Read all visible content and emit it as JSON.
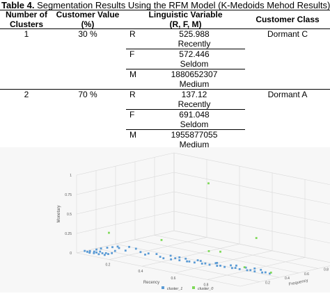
{
  "caption": {
    "label": "Table 4.",
    "text": " Segmentation Results Using the RFM Model (K-Medoids Mehod Results)"
  },
  "table": {
    "headers": {
      "clusters": [
        "Number of",
        "Clusters"
      ],
      "value": [
        "Customer Value",
        "(%)"
      ],
      "variable": [
        "Linguistic Variable",
        "(R, F, M)"
      ],
      "class": "Customer Class"
    },
    "rows": [
      {
        "cluster": "1",
        "value": "30 %",
        "class": "Dormant C",
        "vars": [
          {
            "key": "R",
            "number": "525.988",
            "term": "Recently"
          },
          {
            "key": "F",
            "number": "572.446",
            "term": "Seldom"
          },
          {
            "key": "M",
            "number": "1880652307",
            "term": "Medium"
          }
        ]
      },
      {
        "cluster": "2",
        "value": "70 %",
        "class": "Dormant A",
        "vars": [
          {
            "key": "R",
            "number": "137.12",
            "term": "Recently"
          },
          {
            "key": "F",
            "number": "691.048",
            "term": "Seldom"
          },
          {
            "key": "M",
            "number": "1955877055",
            "term": "Medium"
          }
        ]
      }
    ]
  },
  "chart_data": {
    "type": "scatter",
    "xlabel": "Recency",
    "ylabel": "Frequency",
    "zlabel": "Monetary",
    "x_ticks": [
      "0.2",
      "0.4",
      "0.6",
      "0.8"
    ],
    "y_ticks": [
      "0.2",
      "0.4",
      "0.6",
      "0.8"
    ],
    "z_ticks": [
      "0",
      "0.25",
      "0.5",
      "0.75",
      "1"
    ],
    "legend_placement": "bottom",
    "series": [
      {
        "name": "cluster_1",
        "color": "#5b9bd5",
        "points": [
          [
            0.02,
            0.05,
            0.02
          ],
          [
            0.03,
            0.06,
            0.01
          ],
          [
            0.04,
            0.07,
            0.02
          ],
          [
            0.05,
            0.05,
            0.01
          ],
          [
            0.06,
            0.08,
            0.02
          ],
          [
            0.07,
            0.06,
            0.01
          ],
          [
            0.08,
            0.07,
            0.02
          ],
          [
            0.09,
            0.09,
            0.03
          ],
          [
            0.1,
            0.06,
            0.01
          ],
          [
            0.11,
            0.08,
            0.02
          ],
          [
            0.12,
            0.1,
            0.02
          ],
          [
            0.13,
            0.07,
            0.01
          ],
          [
            0.14,
            0.09,
            0.02
          ],
          [
            0.15,
            0.11,
            0.03
          ],
          [
            0.05,
            0.12,
            0.03
          ],
          [
            0.06,
            0.15,
            0.04
          ],
          [
            0.08,
            0.18,
            0.05
          ],
          [
            0.1,
            0.2,
            0.06
          ],
          [
            0.12,
            0.22,
            0.07
          ],
          [
            0.14,
            0.16,
            0.04
          ],
          [
            0.18,
            0.2,
            0.05
          ],
          [
            0.22,
            0.24,
            0.08
          ],
          [
            0.26,
            0.22,
            0.06
          ],
          [
            0.3,
            0.2,
            0.05
          ],
          [
            0.34,
            0.25,
            0.06
          ],
          [
            0.38,
            0.22,
            0.05
          ],
          [
            0.42,
            0.26,
            0.07
          ],
          [
            0.46,
            0.24,
            0.06
          ],
          [
            0.5,
            0.28,
            0.06
          ],
          [
            0.54,
            0.25,
            0.05
          ],
          [
            0.58,
            0.3,
            0.06
          ],
          [
            0.62,
            0.28,
            0.05
          ],
          [
            0.66,
            0.32,
            0.06
          ],
          [
            0.7,
            0.3,
            0.05
          ],
          [
            0.74,
            0.34,
            0.06
          ],
          [
            0.78,
            0.32,
            0.05
          ],
          [
            0.82,
            0.36,
            0.06
          ],
          [
            0.86,
            0.34,
            0.05
          ],
          [
            0.9,
            0.38,
            0.06
          ],
          [
            0.94,
            0.36,
            0.05
          ],
          [
            0.4,
            0.22,
            0.04
          ],
          [
            0.44,
            0.23,
            0.04
          ],
          [
            0.48,
            0.25,
            0.04
          ],
          [
            0.52,
            0.26,
            0.04
          ],
          [
            0.56,
            0.27,
            0.04
          ],
          [
            0.6,
            0.28,
            0.04
          ],
          [
            0.64,
            0.29,
            0.04
          ],
          [
            0.68,
            0.3,
            0.04
          ],
          [
            0.72,
            0.31,
            0.04
          ],
          [
            0.76,
            0.32,
            0.04
          ],
          [
            0.8,
            0.33,
            0.04
          ],
          [
            0.84,
            0.34,
            0.04
          ],
          [
            0.88,
            0.35,
            0.04
          ],
          [
            0.92,
            0.36,
            0.04
          ],
          [
            0.96,
            0.37,
            0.04
          ],
          [
            0.45,
            0.3,
            0.05
          ],
          [
            0.55,
            0.32,
            0.05
          ],
          [
            0.65,
            0.35,
            0.05
          ],
          [
            0.75,
            0.38,
            0.05
          ],
          [
            0.85,
            0.4,
            0.05
          ],
          [
            0.2,
            0.1,
            0.12
          ],
          [
            0.25,
            0.12,
            0.15
          ],
          [
            0.35,
            0.15,
            0.1
          ]
        ]
      },
      {
        "name": "cluster_0",
        "color": "#7ed957",
        "points": [
          [
            0.3,
            0.85,
            0.78
          ],
          [
            0.15,
            0.08,
            0.3
          ],
          [
            0.4,
            0.2,
            0.28
          ],
          [
            0.6,
            0.35,
            0.18
          ],
          [
            0.92,
            0.3,
            0.5
          ],
          [
            0.7,
            0.3,
            0.23
          ],
          [
            0.8,
            0.38,
            0.05
          ],
          [
            0.95,
            0.4,
            0.04
          ]
        ]
      }
    ]
  }
}
